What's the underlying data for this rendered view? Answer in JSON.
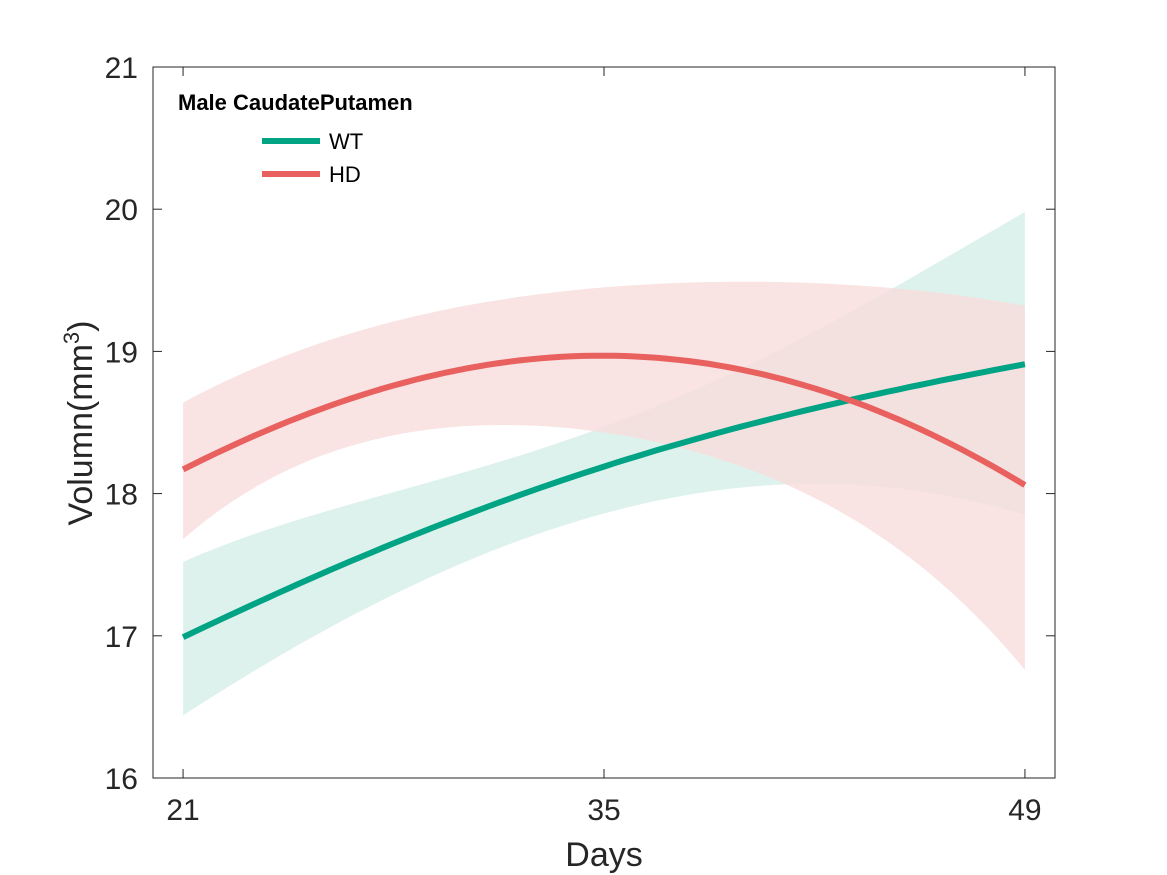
{
  "chart_data": {
    "type": "line",
    "legend": {
      "title": "Male CaudatePutamen",
      "placement": "top-left",
      "box": false
    },
    "xlabel": "Days",
    "ylabel": {
      "base": "Volumn(mm",
      "superscript": "3",
      "close": ")"
    },
    "xlim": [
      20,
      50
    ],
    "ylim": [
      16,
      21
    ],
    "xticks": [
      21,
      35,
      49
    ],
    "yticks": [
      16,
      17,
      18,
      19,
      20,
      21
    ],
    "grid": false,
    "series": [
      {
        "name": "WT",
        "color": "#00a383",
        "fill_color": "#d6efe8",
        "x": [
          21,
          28,
          35,
          42,
          49
        ],
        "mean": [
          16.99,
          17.65,
          18.19,
          18.6,
          18.91
        ],
        "lower": [
          16.44,
          17.29,
          17.86,
          18.07,
          17.85
        ],
        "upper": [
          17.52,
          18.01,
          18.47,
          19.14,
          19.98
        ]
      },
      {
        "name": "HD",
        "color": "#e8615f",
        "fill_color": "#f8dcdc",
        "x": [
          21,
          28,
          35,
          42,
          49
        ],
        "mean": [
          18.17,
          18.76,
          18.97,
          18.74,
          18.06
        ],
        "lower": [
          17.68,
          18.41,
          18.43,
          17.97,
          16.76
        ],
        "upper": [
          18.64,
          19.21,
          19.45,
          19.48,
          19.32
        ]
      }
    ]
  }
}
